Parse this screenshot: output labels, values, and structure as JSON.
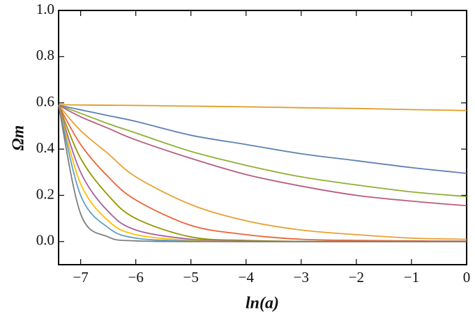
{
  "chart_data": {
    "type": "line",
    "xlabel": "ln(a)",
    "ylabel": "Ωm",
    "x": [
      -7.4,
      -7,
      -6.5,
      -6,
      -5,
      -4,
      -3,
      -2,
      -1,
      0
    ],
    "series": [
      {
        "color": "#e19c24",
        "values": [
          0.592,
          0.591,
          0.59,
          0.589,
          0.586,
          0.583,
          0.579,
          0.576,
          0.571,
          0.567
        ]
      },
      {
        "color": "#5e81b5",
        "values": [
          0.59,
          0.57,
          0.545,
          0.52,
          0.46,
          0.42,
          0.38,
          0.35,
          0.32,
          0.295
        ]
      },
      {
        "color": "#8fb032",
        "values": [
          0.59,
          0.555,
          0.51,
          0.47,
          0.39,
          0.33,
          0.28,
          0.245,
          0.215,
          0.195
        ]
      },
      {
        "color": "#b75b7f",
        "values": [
          0.59,
          0.54,
          0.49,
          0.44,
          0.36,
          0.29,
          0.24,
          0.2,
          0.175,
          0.155
        ]
      },
      {
        "color": "#e9a030",
        "values": [
          0.59,
          0.48,
          0.38,
          0.28,
          0.16,
          0.09,
          0.05,
          0.03,
          0.015,
          0.01
        ]
      },
      {
        "color": "#eb6235",
        "values": [
          0.59,
          0.42,
          0.28,
          0.18,
          0.07,
          0.03,
          0.01,
          0.005,
          0.003,
          0.002
        ]
      },
      {
        "color": "#929600",
        "values": [
          0.59,
          0.36,
          0.2,
          0.1,
          0.02,
          0.005,
          0.001,
          0,
          0,
          0
        ]
      },
      {
        "color": "#a5609d",
        "values": [
          0.59,
          0.3,
          0.13,
          0.05,
          0.01,
          0.002,
          0,
          0,
          0,
          0
        ]
      },
      {
        "color": "#ffbf00",
        "values": [
          0.59,
          0.25,
          0.09,
          0.03,
          0.005,
          0,
          0,
          0,
          0,
          0
        ]
      },
      {
        "color": "#5d9ec7",
        "values": [
          0.59,
          0.2,
          0.06,
          0.015,
          0.002,
          0,
          0,
          0,
          0,
          0
        ]
      },
      {
        "color": "#7f7f7f",
        "values": [
          0.59,
          0.12,
          0.02,
          0.003,
          0,
          0,
          0,
          0,
          0,
          0
        ]
      }
    ],
    "xlim": [
      -7.4,
      0
    ],
    "ylim": [
      -0.1,
      1.0
    ],
    "xticks": [
      {
        "value": -7,
        "label": "−7"
      },
      {
        "value": -6,
        "label": "−6"
      },
      {
        "value": -5,
        "label": "−5"
      },
      {
        "value": -4,
        "label": "−4"
      },
      {
        "value": -3,
        "label": "−3"
      },
      {
        "value": -2,
        "label": "−2"
      },
      {
        "value": -1,
        "label": "−1"
      },
      0
    ],
    "yticks": [
      {
        "value": 0,
        "label": "0.0"
      },
      {
        "value": 0.2,
        "label": "0.2"
      },
      {
        "value": 0.4,
        "label": "0.4"
      },
      {
        "value": 0.6,
        "label": "0.6"
      },
      {
        "value": 0.8,
        "label": "0.8"
      },
      {
        "value": 1,
        "label": "1.0"
      }
    ]
  }
}
